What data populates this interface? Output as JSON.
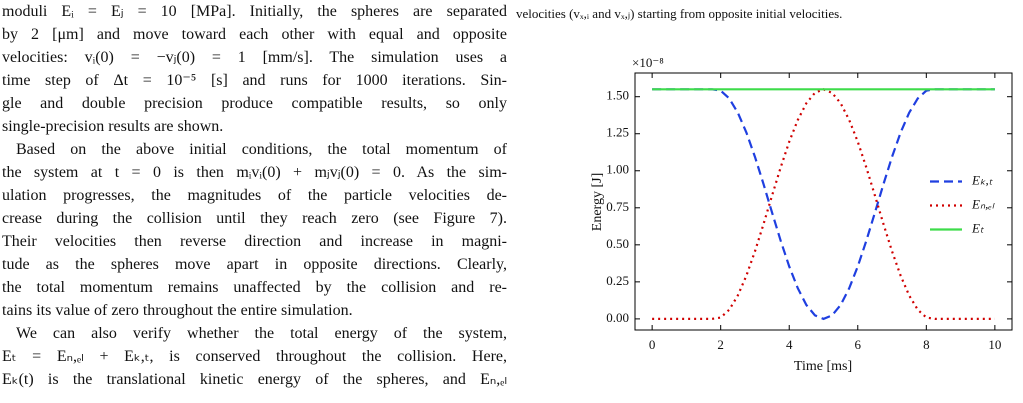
{
  "text": {
    "paragraphs": [
      [
        "moduli Eᵢ = Eⱼ = 10 [MPa]. Initially, the spheres are separated",
        "by 2 [μm] and move toward each other with equal and opposite",
        "velocities: vᵢ(0) = −vⱼ(0) = 1 [mm/s]. The simulation uses a",
        "time step of Δt = 10⁻⁵ [s] and runs for 1000 iterations. Sin-",
        "gle and double precision produce compatible results, so only",
        "single-precision results are shown."
      ],
      [
        "Based on the above initial conditions, the total momentum of",
        "the system at t = 0 is then mᵢvᵢ(0) + mⱼvⱼ(0) = 0. As the sim-",
        "ulation progresses, the magnitudes of the particle velocities de-",
        "crease during the collision until they reach zero (see Figure 7).",
        "Their velocities then reverse direction and increase in magni-",
        "tude as the spheres move apart in opposite directions. Clearly,",
        "the total momentum remains unaffected by the collision and re-",
        "tains its value of zero throughout the entire simulation."
      ],
      [
        "We can also verify whether the total energy of the system,",
        "Eₜ = Eₙ,ₑₗ + Eₖ,ₜ, is conserved throughout the collision. Here,",
        "Eₖ(t) is the translational kinetic energy of the spheres, and Eₙ,ₑₗ"
      ]
    ]
  },
  "caption": "velocities (vₓ,ᵢ and vₓ,ⱼ) starting from opposite initial velocities.",
  "chart_data": {
    "type": "line",
    "x_label": "Time [ms]",
    "y_label": "Energy [J]",
    "y_offset_label": "×10⁻⁸",
    "x": [
      0,
      0.25,
      0.5,
      0.75,
      1,
      1.25,
      1.5,
      1.75,
      2,
      2.25,
      2.5,
      2.75,
      3,
      3.25,
      3.5,
      3.75,
      4,
      4.25,
      4.5,
      4.75,
      5,
      5.25,
      5.5,
      5.75,
      6,
      6.25,
      6.5,
      6.75,
      7,
      7.25,
      7.5,
      7.75,
      8,
      8.25,
      8.5,
      8.75,
      9,
      9.25,
      9.5,
      9.75,
      10
    ],
    "series": [
      {
        "name": "Eₖ,ₜ",
        "color": "#1f3fe0",
        "dash": "dashed",
        "values": [
          1.55,
          1.55,
          1.55,
          1.55,
          1.55,
          1.55,
          1.55,
          1.55,
          1.541,
          1.488,
          1.392,
          1.258,
          1.094,
          0.91,
          0.717,
          0.528,
          0.354,
          0.207,
          0.094,
          0.024,
          0,
          0.024,
          0.094,
          0.207,
          0.354,
          0.528,
          0.717,
          0.91,
          1.094,
          1.258,
          1.392,
          1.488,
          1.541,
          1.55,
          1.55,
          1.55,
          1.55,
          1.55,
          1.55,
          1.55,
          1.55
        ]
      },
      {
        "name": "Eₙ,ₑₗ",
        "color": "#d00000",
        "dash": "dotted",
        "values": [
          0,
          0,
          0,
          0,
          0,
          0,
          0,
          0,
          0.009,
          0.062,
          0.158,
          0.292,
          0.456,
          0.64,
          0.833,
          1.022,
          1.196,
          1.343,
          1.456,
          1.526,
          1.55,
          1.526,
          1.456,
          1.343,
          1.196,
          1.022,
          0.833,
          0.64,
          0.456,
          0.292,
          0.158,
          0.062,
          0.009,
          0,
          0,
          0,
          0,
          0,
          0,
          0,
          0
        ]
      },
      {
        "name": "Eₜ",
        "color": "#3ddc4a",
        "dash": "solid",
        "values": [
          1.55,
          1.55,
          1.55,
          1.55,
          1.55,
          1.55,
          1.55,
          1.55,
          1.55,
          1.55,
          1.55,
          1.55,
          1.55,
          1.55,
          1.55,
          1.55,
          1.55,
          1.55,
          1.55,
          1.55,
          1.55,
          1.55,
          1.55,
          1.55,
          1.55,
          1.55,
          1.55,
          1.55,
          1.55,
          1.55,
          1.55,
          1.55,
          1.55,
          1.55,
          1.55,
          1.55,
          1.55,
          1.55,
          1.55,
          1.55,
          1.55
        ]
      }
    ],
    "xlim": [
      -0.5,
      10.5
    ],
    "ylim": [
      -0.075,
      1.66
    ],
    "xticks": [
      0,
      2,
      4,
      6,
      8,
      10
    ],
    "yticks": [
      {
        "value": 0,
        "label": "0.00"
      },
      {
        "value": 0.25,
        "label": "0.25"
      },
      {
        "value": 0.5,
        "label": "0.50"
      },
      {
        "value": 0.75,
        "label": "0.75"
      },
      {
        "value": 1,
        "label": "1.00"
      },
      {
        "value": 1.25,
        "label": "1.25"
      },
      {
        "value": 1.5,
        "label": "1.50"
      }
    ],
    "legend": "center right",
    "grid": false
  }
}
